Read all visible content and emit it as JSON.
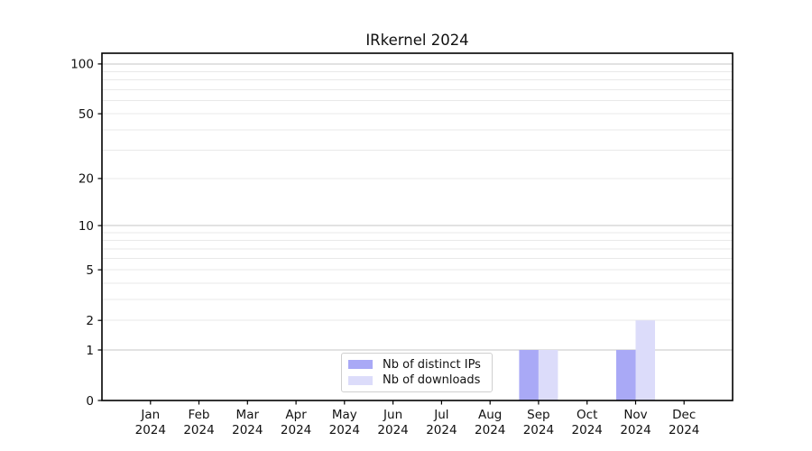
{
  "chart_data": {
    "type": "bar",
    "title": "IRkernel 2024",
    "categories": [
      "Jan",
      "Feb",
      "Mar",
      "Apr",
      "May",
      "Jun",
      "Jul",
      "Aug",
      "Sep",
      "Oct",
      "Nov",
      "Dec"
    ],
    "category_sublabel": "2024",
    "series": [
      {
        "name": "Nb of distinct IPs",
        "color": "#a9a9f6",
        "values": [
          0,
          0,
          0,
          0,
          0,
          0,
          0,
          0,
          1,
          0,
          1,
          0
        ]
      },
      {
        "name": "Nb of downloads",
        "color": "#dcdcfa",
        "values": [
          0,
          0,
          0,
          0,
          0,
          0,
          0,
          0,
          1,
          0,
          2,
          0
        ]
      }
    ],
    "xlabel": "",
    "ylabel": "",
    "y_scale": "log10(1+y)",
    "y_ticks": [
      0,
      1,
      2,
      5,
      10,
      20,
      50,
      100
    ],
    "y_decade_gridlines": [
      1,
      10,
      100
    ],
    "y_minor_gridlines": [
      3,
      4,
      6,
      7,
      8,
      9,
      30,
      40,
      60,
      70,
      80,
      90
    ],
    "ylim": [
      0,
      116
    ],
    "grid": "on",
    "legend_position": "lower center"
  },
  "colors": {
    "background": "#ffffff",
    "axis": "#000000",
    "text": "#111111",
    "grid_decade": "#c5c5c5",
    "grid_minor": "#e9e9e9",
    "legend_border": "#cfcfcf"
  }
}
